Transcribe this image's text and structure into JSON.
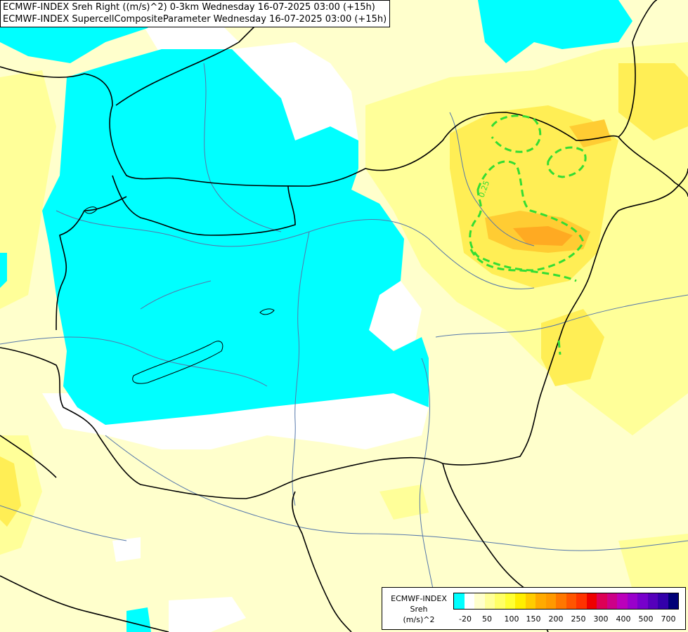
{
  "titles": {
    "line1": "ECMWF-INDEX Sreh Right ((m/s)^2) 0-3km Wednesday 16-07-2025 03:00 (+15h)",
    "line2": "ECMWF-INDEX SupercellCompositeParameter Wednesday 16-07-2025 03:00 (+15h)"
  },
  "contour_label": "0.25",
  "colors": {
    "background_low": "#ffffcc",
    "negative": "#00ffff",
    "white": "#ffffff",
    "level1": "#ffff99",
    "level2": "#ffee55",
    "level3": "#ffcc33",
    "level4": "#ffaa00",
    "contour": "#33dd33",
    "borders": "#000000",
    "rivers": "#5577aa"
  },
  "legend": {
    "source": "ECMWF-INDEX",
    "param": "Sreh",
    "unit": "(m/s)^2",
    "swatches": [
      "#00ffff",
      "#ffffff",
      "#ffffcc",
      "#ffff99",
      "#ffff66",
      "#ffff33",
      "#ffee00",
      "#ffcc00",
      "#ffaa00",
      "#ff9900",
      "#ff7700",
      "#ff5500",
      "#ff3300",
      "#ee0000",
      "#dd0055",
      "#cc0088",
      "#bb00bb",
      "#9900cc",
      "#7700cc",
      "#5500bb",
      "#3300aa",
      "#000077"
    ],
    "ticks": [
      "-20",
      "50",
      "100",
      "150",
      "200",
      "250",
      "300",
      "400",
      "500",
      "700"
    ]
  }
}
